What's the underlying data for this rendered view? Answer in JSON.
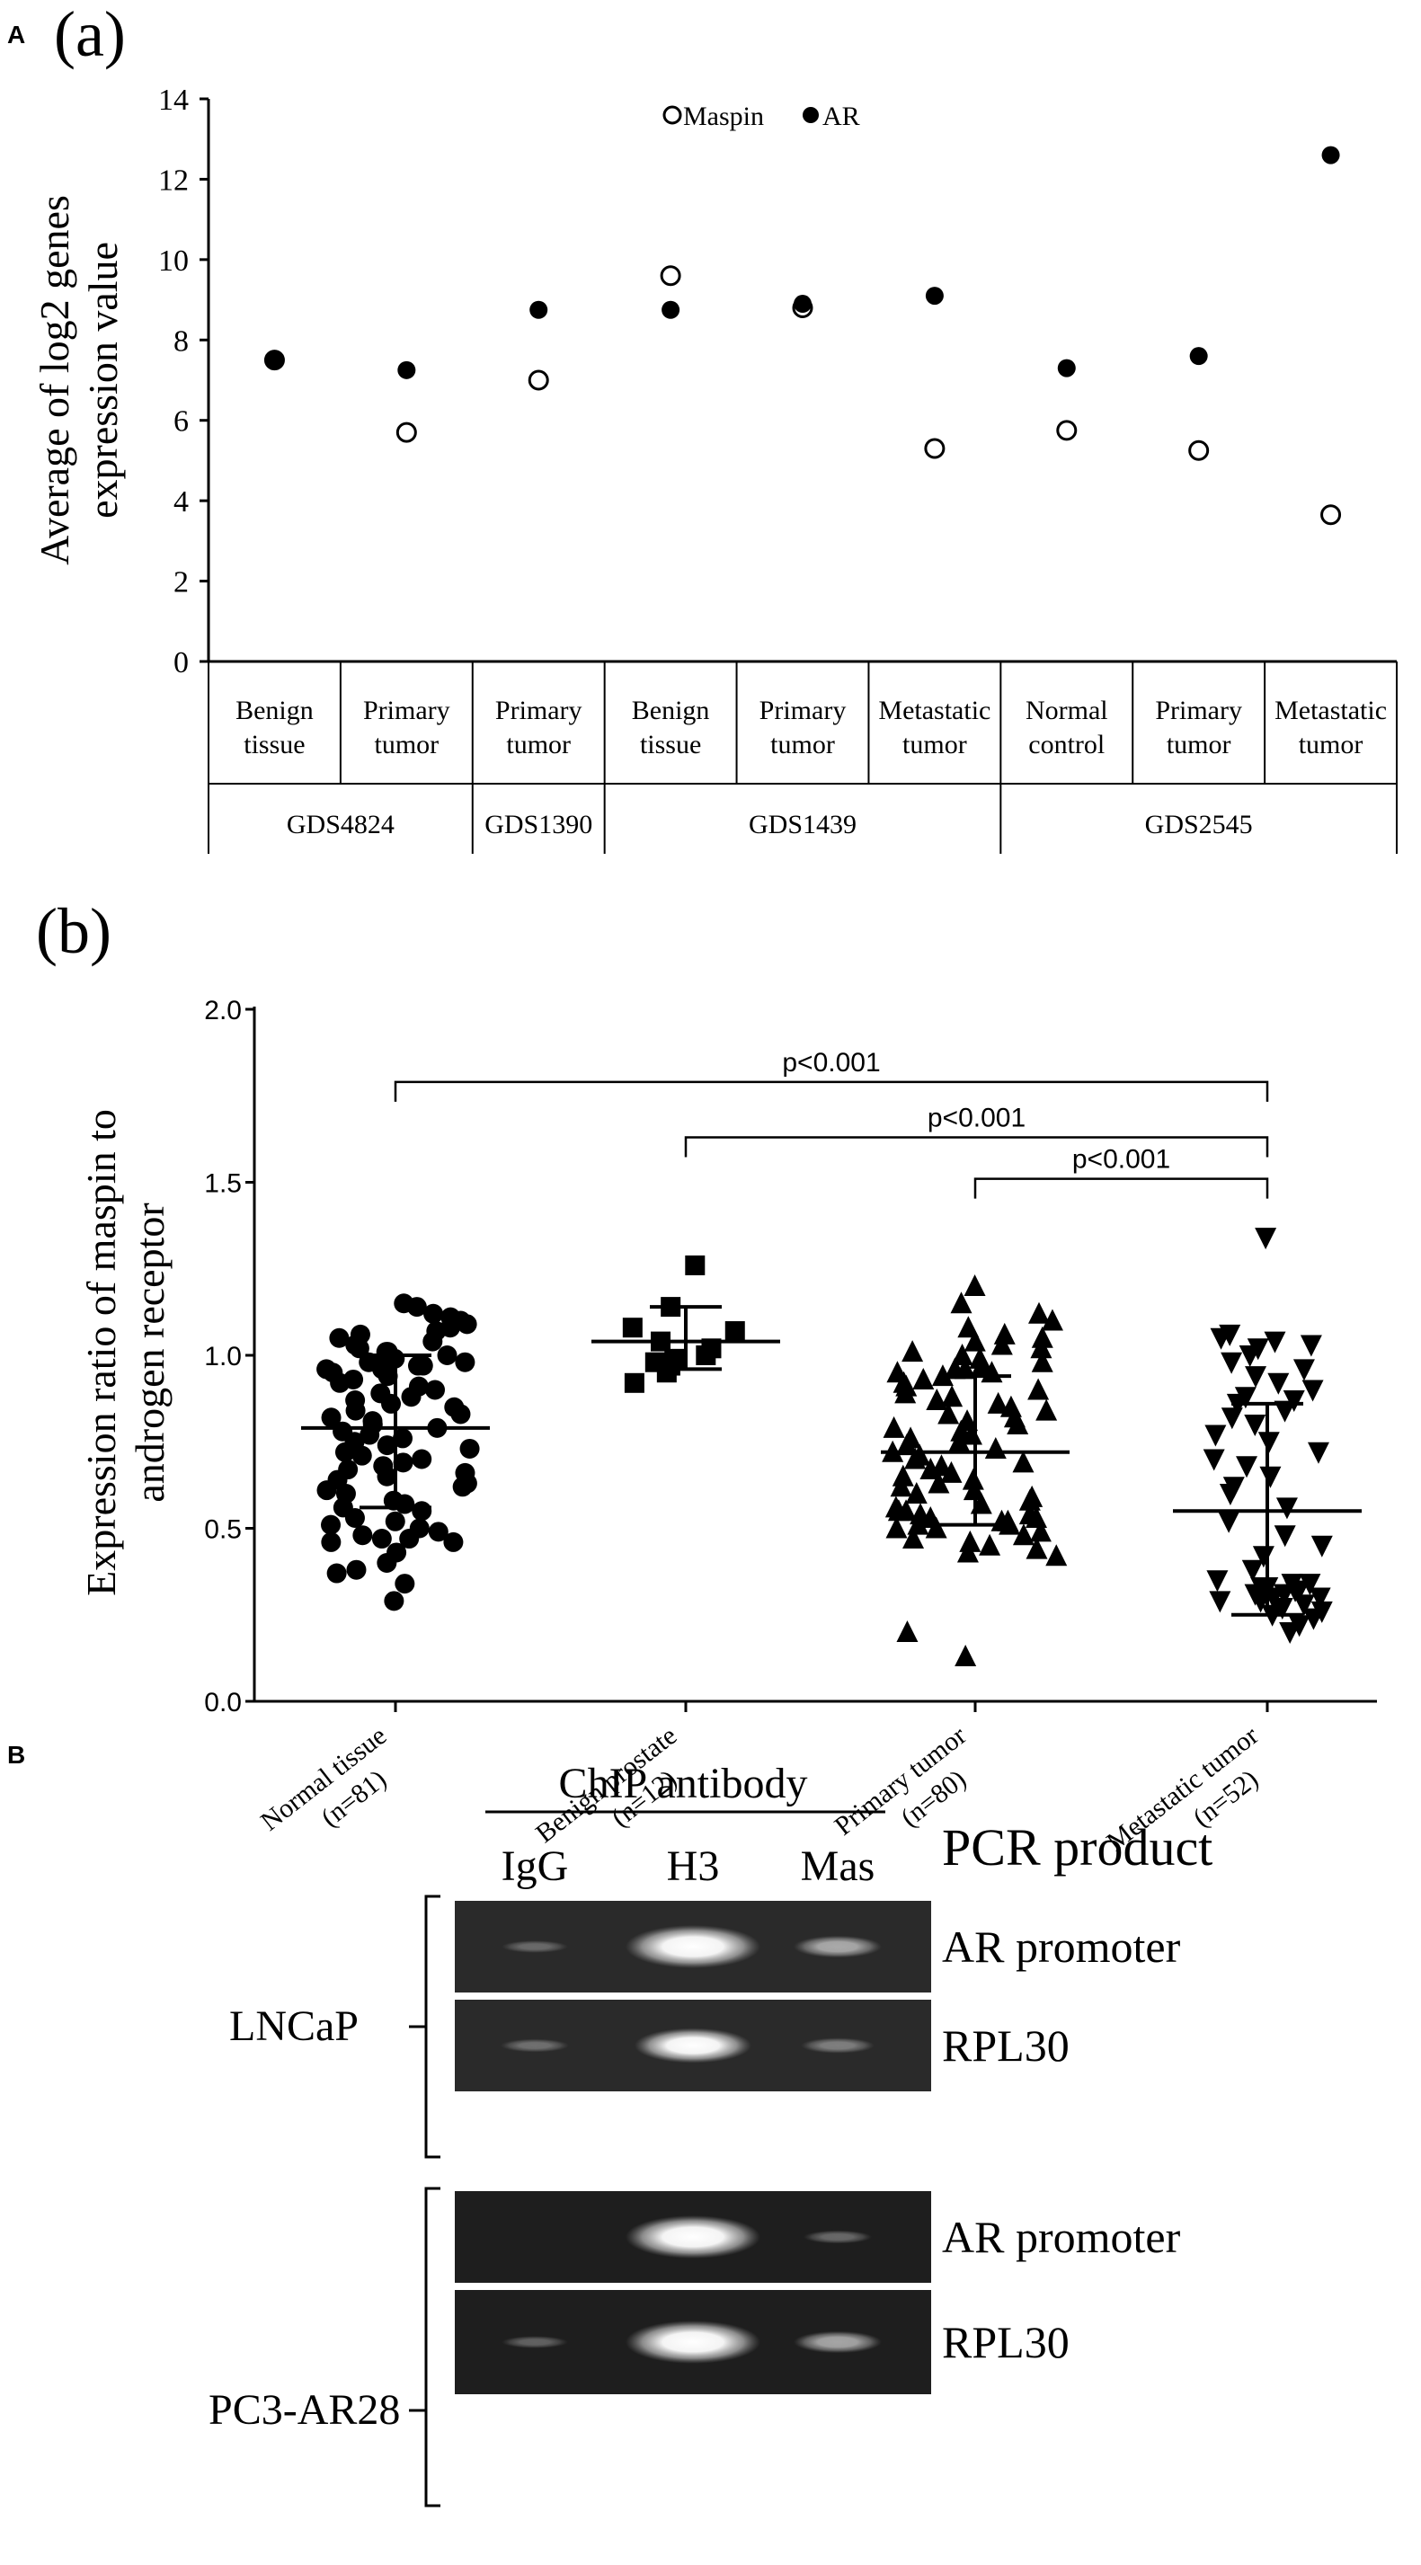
{
  "figure": {
    "panel_A_letter": "A",
    "panel_B_letter": "B",
    "sub_a_label": "(a)",
    "sub_b_label": "(b)"
  },
  "chart_data": [
    {
      "type": "scatter",
      "panel": "(a)",
      "ylabel": "Average of log2 genes expression value",
      "ylabel_lines": [
        "Average of log2 genes",
        "expression value"
      ],
      "ylim": [
        0,
        14
      ],
      "yticks": [
        0,
        2,
        4,
        6,
        8,
        10,
        12,
        14
      ],
      "legend": {
        "placement": "top-center",
        "entries": [
          {
            "name": "Maspin",
            "marker": "open-circle"
          },
          {
            "name": "AR",
            "marker": "filled-circle"
          }
        ]
      },
      "categories": [
        [
          "Benign",
          "tissue"
        ],
        [
          "Primary",
          "tumor"
        ],
        [
          "Primary",
          "tumor"
        ],
        [
          "Benign",
          "tissue"
        ],
        [
          "Primary",
          "tumor"
        ],
        [
          "Metastatic",
          "tumor"
        ],
        [
          "Normal",
          "control"
        ],
        [
          "Primary",
          "tumor"
        ],
        [
          "Metastatic",
          "tumor"
        ]
      ],
      "groups": [
        {
          "name": "GDS4824",
          "span": [
            0,
            1
          ]
        },
        {
          "name": "GDS1390",
          "span": [
            2,
            2
          ]
        },
        {
          "name": "GDS1439",
          "span": [
            3,
            5
          ]
        },
        {
          "name": "GDS2545",
          "span": [
            6,
            8
          ]
        }
      ],
      "series": [
        {
          "name": "Maspin",
          "values": [
            7.5,
            5.7,
            7.0,
            9.6,
            8.8,
            5.3,
            5.75,
            5.25,
            3.65
          ]
        },
        {
          "name": "AR",
          "values": [
            7.5,
            7.25,
            8.75,
            8.75,
            8.9,
            9.1,
            7.3,
            7.6,
            12.6
          ]
        }
      ]
    },
    {
      "type": "scatter",
      "panel": "(b)",
      "ylabel": "Expression ratio of maspin to androgen receptor",
      "ylabel_lines": [
        "Expression ratio of maspin to",
        "androgen receptor"
      ],
      "ylim": [
        0.0,
        2.0
      ],
      "yticks": [
        "0.0",
        "0.5",
        "1.0",
        "1.5",
        "2.0"
      ],
      "tick_text": {
        "y_0": "0.0",
        "y_0_5": "0.5",
        "y_1": "1.0",
        "y_1_5": "1.5",
        "y_2": "2.0"
      },
      "categories": [
        [
          "Normal tissue",
          "(n=81)"
        ],
        [
          "Benign prostate",
          "(n=12)"
        ],
        [
          "Primary tumor",
          "(n=80)"
        ],
        [
          "Metastatic tumor",
          "(n=52)"
        ]
      ],
      "markers": [
        "circle",
        "square",
        "triangle-up",
        "triangle-down"
      ],
      "summary": [
        {
          "mean": 0.79,
          "sd_low": 0.56,
          "sd_high": 1.0
        },
        {
          "mean": 1.04,
          "sd_low": 0.96,
          "sd_high": 1.14
        },
        {
          "mean": 0.72,
          "sd_low": 0.51,
          "sd_high": 0.94
        },
        {
          "mean": 0.55,
          "sd_low": 0.25,
          "sd_high": 0.86
        }
      ],
      "points": [
        [
          0.29,
          0.34,
          0.37,
          0.38,
          0.4,
          0.43,
          0.46,
          0.46,
          0.47,
          0.47,
          0.48,
          0.49,
          0.5,
          0.51,
          0.52,
          0.53,
          0.55,
          0.56,
          0.57,
          0.58,
          0.6,
          0.61,
          0.62,
          0.63,
          0.64,
          0.65,
          0.66,
          0.67,
          0.68,
          0.69,
          0.7,
          0.71,
          0.72,
          0.73,
          0.74,
          0.75,
          0.76,
          0.77,
          0.78,
          0.79,
          0.8,
          0.81,
          0.82,
          0.83,
          0.84,
          0.85,
          0.86,
          0.87,
          0.88,
          0.89,
          0.9,
          0.91,
          0.92,
          0.93,
          0.94,
          0.95,
          0.96,
          0.96,
          0.97,
          0.97,
          0.98,
          0.98,
          0.99,
          0.99,
          1.0,
          1.0,
          1.01,
          1.01,
          1.02,
          1.03,
          1.04,
          1.05,
          1.06,
          1.07,
          1.08,
          1.09,
          1.1,
          1.11,
          1.12,
          1.14,
          1.15
        ],
        [
          0.92,
          0.95,
          0.97,
          0.98,
          0.99,
          1.0,
          1.02,
          1.04,
          1.07,
          1.08,
          1.14,
          1.26
        ],
        [
          0.13,
          0.2,
          0.42,
          0.43,
          0.44,
          0.45,
          0.46,
          0.47,
          0.48,
          0.49,
          0.5,
          0.5,
          0.51,
          0.51,
          0.52,
          0.52,
          0.53,
          0.53,
          0.54,
          0.54,
          0.55,
          0.55,
          0.56,
          0.57,
          0.58,
          0.59,
          0.6,
          0.61,
          0.62,
          0.63,
          0.64,
          0.65,
          0.66,
          0.67,
          0.68,
          0.69,
          0.7,
          0.71,
          0.72,
          0.73,
          0.74,
          0.75,
          0.76,
          0.77,
          0.78,
          0.79,
          0.8,
          0.81,
          0.82,
          0.83,
          0.84,
          0.85,
          0.86,
          0.87,
          0.88,
          0.89,
          0.9,
          0.91,
          0.92,
          0.93,
          0.94,
          0.95,
          0.95,
          0.96,
          0.96,
          0.97,
          0.98,
          0.99,
          1.0,
          1.01,
          1.02,
          1.03,
          1.04,
          1.05,
          1.06,
          1.08,
          1.1,
          1.12,
          1.15,
          1.2
        ],
        [
          0.2,
          0.22,
          0.24,
          0.25,
          0.26,
          0.27,
          0.28,
          0.29,
          0.29,
          0.3,
          0.3,
          0.31,
          0.31,
          0.32,
          0.32,
          0.33,
          0.33,
          0.34,
          0.34,
          0.35,
          0.38,
          0.42,
          0.45,
          0.48,
          0.52,
          0.56,
          0.6,
          0.62,
          0.65,
          0.68,
          0.7,
          0.72,
          0.75,
          0.77,
          0.8,
          0.82,
          0.84,
          0.86,
          0.87,
          0.88,
          0.9,
          0.92,
          0.94,
          0.96,
          0.98,
          1.0,
          1.02,
          1.03,
          1.04,
          1.05,
          1.06,
          1.34
        ]
      ],
      "comparisons": [
        {
          "from": 0,
          "to": 3,
          "label": "p<0.001"
        },
        {
          "from": 1,
          "to": 3,
          "label": "p<0.001"
        },
        {
          "from": 2,
          "to": 3,
          "label": "p<0.001"
        }
      ]
    }
  ],
  "gel": {
    "header": "ChIP antibody",
    "pcr_header": "PCR product",
    "lanes": [
      "IgG",
      "H3",
      "Mas"
    ],
    "cell_lines": [
      "LNCaP",
      "PC3-AR28"
    ],
    "rows": [
      {
        "label": "AR promoter",
        "intensity": [
          0.05,
          1.0,
          0.35
        ]
      },
      {
        "label": "RPL30",
        "intensity": [
          0.08,
          0.75,
          0.15
        ]
      },
      {
        "label": "AR promoter",
        "intensity": [
          0.0,
          1.0,
          0.08
        ]
      },
      {
        "label": "RPL30",
        "intensity": [
          0.05,
          1.0,
          0.35
        ]
      }
    ]
  }
}
